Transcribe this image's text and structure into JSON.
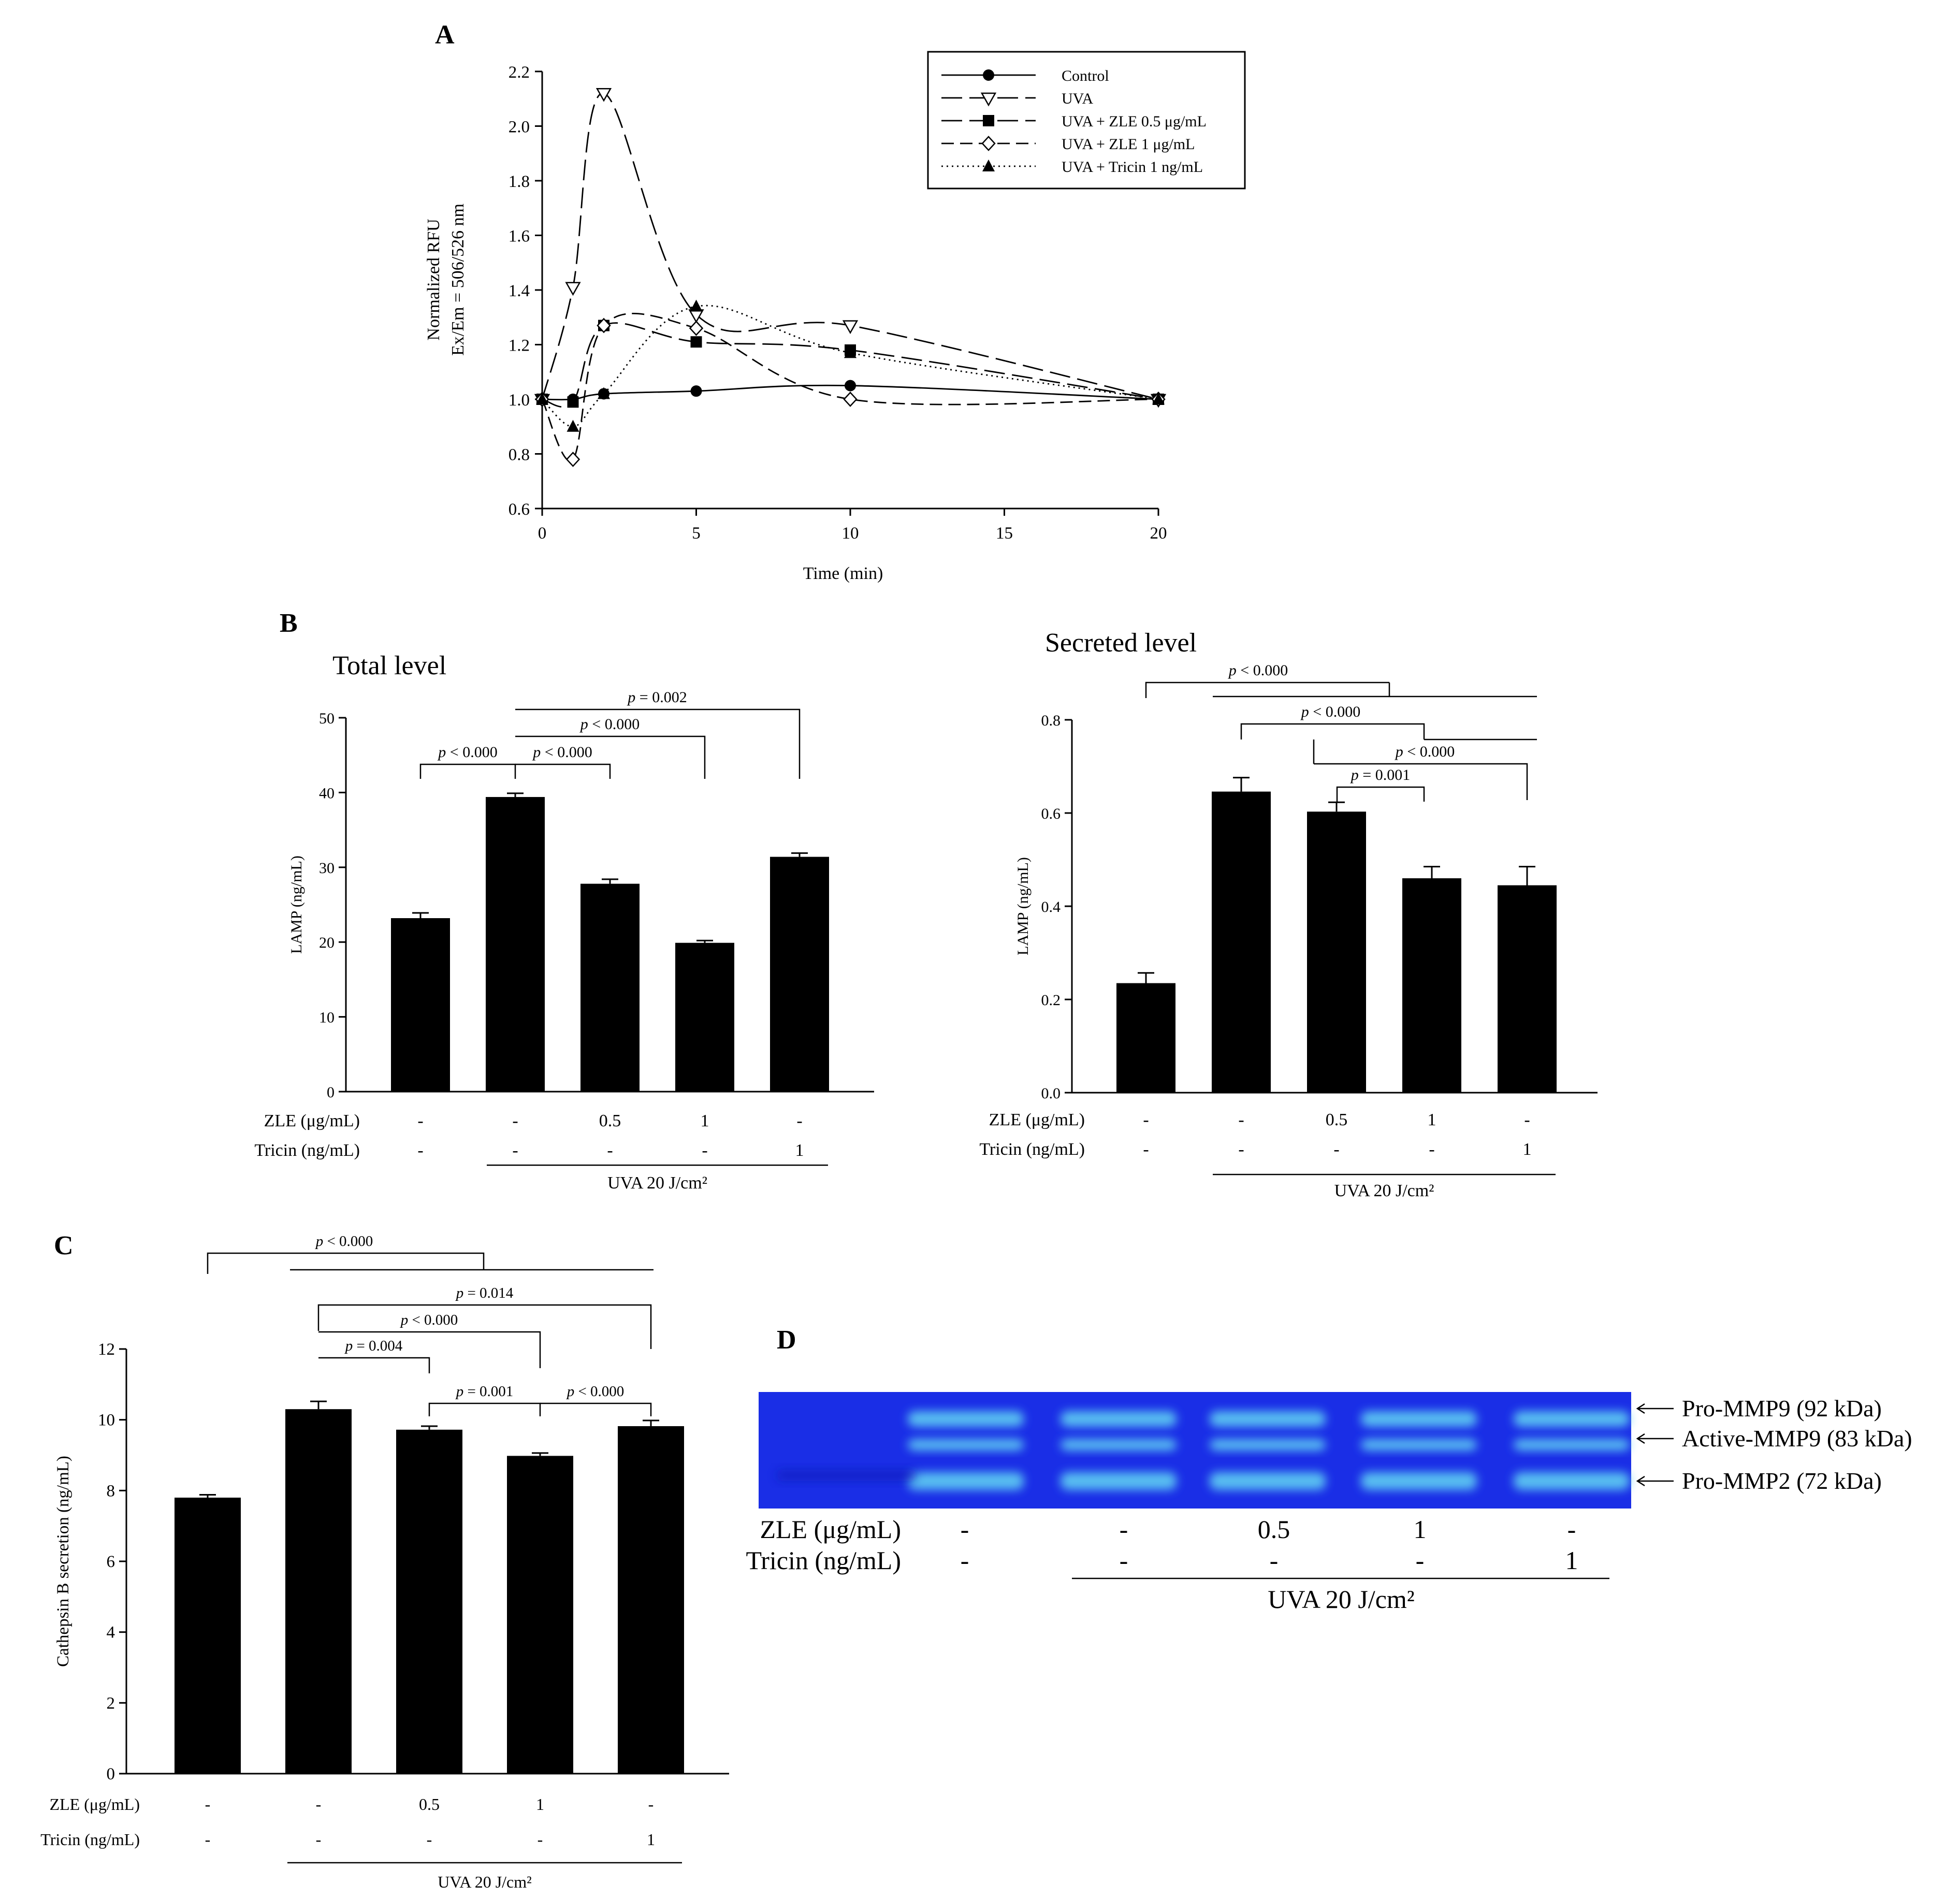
{
  "panels": {
    "a": "A",
    "b": "B",
    "c": "C",
    "d": "D"
  },
  "chart_data": [
    {
      "id": "A",
      "type": "line",
      "title": "",
      "xlabel": "Time (min)",
      "ylabel_lines": [
        "Normalized RFU",
        "Ex/Em = 506/526 nm"
      ],
      "xlim": [
        0,
        20
      ],
      "ylim": [
        0.6,
        2.2
      ],
      "xticks": [
        0,
        5,
        10,
        15,
        20
      ],
      "yticks": [
        0.6,
        0.8,
        1.0,
        1.2,
        1.4,
        1.6,
        1.8,
        2.0,
        2.2
      ],
      "grid": false,
      "legend_position": "top-right",
      "x": [
        0,
        1,
        2,
        5,
        10,
        20
      ],
      "series": [
        {
          "name": "Control",
          "marker": "filled-circle",
          "dash": "solid",
          "values": [
            1.0,
            1.0,
            1.02,
            1.03,
            1.05,
            1.0
          ]
        },
        {
          "name": "UVA",
          "marker": "open-triangle-down",
          "dash": "long",
          "values": [
            1.0,
            1.41,
            2.12,
            1.31,
            1.27,
            1.0
          ]
        },
        {
          "name": "UVA + ZLE 0.5 μg/mL",
          "marker": "filled-square",
          "dash": "long",
          "values": [
            1.0,
            0.99,
            1.27,
            1.21,
            1.18,
            1.0
          ]
        },
        {
          "name": "UVA + ZLE 1 μg/mL",
          "marker": "open-diamond",
          "dash": "medium",
          "values": [
            1.0,
            0.78,
            1.27,
            1.26,
            1.0,
            1.0
          ]
        },
        {
          "name": "UVA + Tricin 1 ng/mL",
          "marker": "filled-triangle-up",
          "dash": "dotted",
          "values": [
            1.0,
            0.9,
            1.02,
            1.34,
            1.17,
            1.0
          ]
        }
      ]
    },
    {
      "id": "B-total",
      "type": "bar",
      "title": "Total level",
      "ylabel": "LAMP (ng/mL)",
      "ylim": [
        0,
        50
      ],
      "yticks": [
        0,
        10,
        20,
        30,
        40,
        50
      ],
      "values": [
        23.2,
        39.4,
        27.8,
        19.9,
        31.4
      ],
      "errors": [
        0.7,
        0.5,
        0.6,
        0.3,
        0.5
      ],
      "rows": [
        {
          "label": "ZLE (μg/mL)",
          "values": [
            "-",
            "-",
            "0.5",
            "1",
            "-"
          ]
        },
        {
          "label": "Tricin (ng/mL)",
          "values": [
            "-",
            "-",
            "-",
            "-",
            "1"
          ]
        }
      ],
      "group_label": "UVA 20 J/cm²",
      "brackets": [
        {
          "from": 0,
          "to": 1,
          "label": "p < 0.000"
        },
        {
          "from": 1,
          "to": 2,
          "label": "p < 0.000"
        },
        {
          "from": 1,
          "to": 3,
          "label": "p < 0.000"
        },
        {
          "from": 1,
          "to": 4,
          "label": "p = 0.002"
        }
      ]
    },
    {
      "id": "B-secreted",
      "type": "bar",
      "title": "Secreted level",
      "ylabel": "LAMP (ng/mL)",
      "ylim": [
        0,
        0.8
      ],
      "yticks": [
        0.0,
        0.2,
        0.4,
        0.6,
        0.8
      ],
      "values": [
        0.235,
        0.646,
        0.603,
        0.46,
        0.445
      ],
      "errors": [
        0.022,
        0.03,
        0.02,
        0.025,
        0.04
      ],
      "rows": [
        {
          "label": "ZLE (μg/mL)",
          "values": [
            "-",
            "-",
            "0.5",
            "1",
            "-"
          ]
        },
        {
          "label": "Tricin (ng/mL)",
          "values": [
            "-",
            "-",
            "-",
            "-",
            "1"
          ]
        }
      ],
      "group_label": "UVA 20 J/cm²",
      "brackets": [
        {
          "from": 0,
          "to": 4,
          "label": "p < 0.000"
        },
        {
          "from": 1,
          "to": 4,
          "label": "p < 0.000"
        },
        {
          "from": 2,
          "to": 4,
          "label": "p < 0.000"
        },
        {
          "from": 2,
          "to": 3,
          "label": "p = 0.001"
        }
      ]
    },
    {
      "id": "C",
      "type": "bar",
      "title": "",
      "ylabel": "Cathepsin B secretion (ng/mL)",
      "ylim": [
        0,
        12
      ],
      "yticks": [
        0,
        2,
        4,
        6,
        8,
        10,
        12
      ],
      "values": [
        7.8,
        10.3,
        9.72,
        8.98,
        9.82
      ],
      "errors": [
        0.08,
        0.22,
        0.1,
        0.08,
        0.16
      ],
      "rows": [
        {
          "label": "ZLE (μg/mL)",
          "values": [
            "-",
            "-",
            "0.5",
            "1",
            "-"
          ]
        },
        {
          "label": "Tricin (ng/mL)",
          "values": [
            "-",
            "-",
            "-",
            "-",
            "1"
          ]
        }
      ],
      "group_label": "UVA 20 J/cm²",
      "brackets": [
        {
          "from": 0,
          "to": 4,
          "label": "p < 0.000"
        },
        {
          "from": 1,
          "to": 4,
          "label": "p = 0.014"
        },
        {
          "from": 1,
          "to": 3,
          "label": "p < 0.000"
        },
        {
          "from": 1,
          "to": 2,
          "label": "p = 0.004"
        },
        {
          "from": 2,
          "to": 3,
          "label": "p = 0.001"
        },
        {
          "from": 3,
          "to": 4,
          "label": "p < 0.000"
        }
      ]
    }
  ],
  "gel": {
    "rows": [
      {
        "label": "ZLE (μg/mL)",
        "values": [
          "-",
          "-",
          "0.5",
          "1",
          "-"
        ]
      },
      {
        "label": "Tricin (ng/mL)",
        "values": [
          "-",
          "-",
          "-",
          "-",
          "1"
        ]
      }
    ],
    "group_label": "UVA 20 J/cm²",
    "band_labels": [
      "Pro-MMP9 (92 kDa)",
      "Active-MMP9 (83 kDa)",
      "Pro-MMP2 (72 kDa)"
    ],
    "colors": {
      "background": "#1a2ee6",
      "band": "#5cc6f2"
    }
  }
}
